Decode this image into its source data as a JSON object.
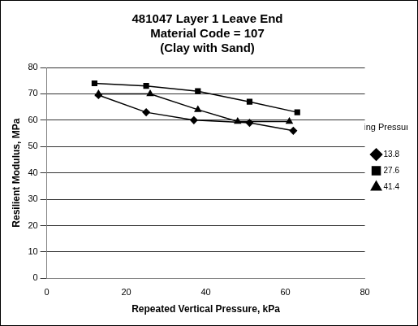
{
  "chart_data": {
    "type": "line",
    "title": [
      "481047 Layer 1 Leave End",
      "Material Code = 107",
      "(Clay with Sand)"
    ],
    "x_label": "Repeated Vertical Pressure, kPa",
    "y_label": "Resilient Modulus, MPa",
    "legend_title": "Confining Pressure, kPa",
    "legend": "right",
    "grid": true,
    "xlim": [
      0,
      80
    ],
    "xticks": [
      0,
      20,
      40,
      60,
      80
    ],
    "ylim": [
      0,
      80
    ],
    "yticks": [
      0,
      10,
      20,
      30,
      40,
      50,
      60,
      70,
      80
    ],
    "series": [
      {
        "name": "13.8",
        "color": "#000000",
        "marker": "diamond",
        "line_style": "solid",
        "x": [
          13,
          25,
          37,
          51,
          62
        ],
        "values": [
          69.5,
          63,
          60,
          59,
          56
        ]
      },
      {
        "name": "27.6",
        "color": "#000000",
        "marker": "square",
        "line_style": "solid",
        "x": [
          12,
          25,
          38,
          51,
          63
        ],
        "values": [
          74,
          73,
          71,
          67,
          63
        ]
      },
      {
        "name": "41.4",
        "color": "#000000",
        "marker": "triangle",
        "line_style": "solid",
        "x": [
          13,
          26,
          38,
          48,
          61
        ],
        "values": [
          70,
          70,
          64,
          59.5,
          59.5
        ]
      }
    ]
  }
}
